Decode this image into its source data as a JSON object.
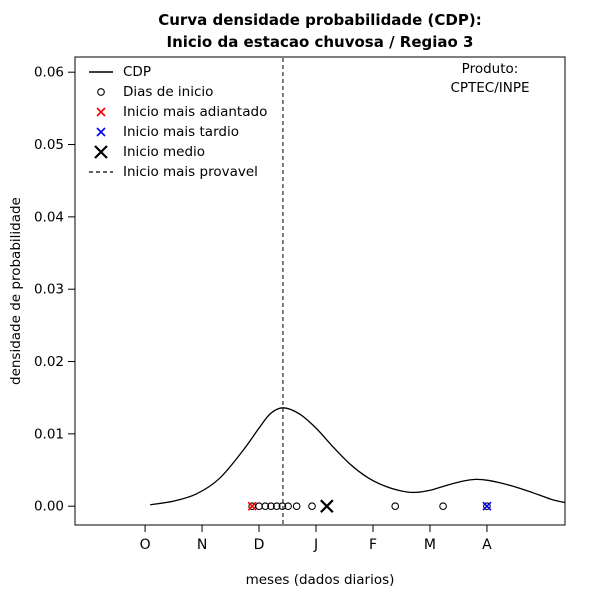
{
  "colors": {
    "foreground": "#000000",
    "background": "#ffffff",
    "earliest": "#ff0000",
    "latest": "#0000ff",
    "mean": "#000000"
  },
  "legend": {
    "items": [
      {
        "label": "CDP"
      },
      {
        "label": "Dias de inicio"
      },
      {
        "label": "Inicio mais adiantado"
      },
      {
        "label": "Inicio mais tardio"
      },
      {
        "label": "Inicio medio"
      },
      {
        "label": "Inicio mais provavel"
      }
    ]
  },
  "chart_data": {
    "type": "line",
    "title_line1": "Curva densidade probabilidade (CDP):",
    "title_line2": "Inicio da estacao chuvosa / Regiao 3",
    "xlabel": "meses (dados diarios)",
    "ylabel": "densidade de probabilidade",
    "annotation_line1": "Produto:",
    "annotation_line2": "CPTEC/INPE",
    "grid": false,
    "legend_position": "top-left",
    "x_domain": [
      -1.23,
      7.37
    ],
    "y_domain": [
      -0.0026,
      0.0621
    ],
    "x_ticks": [
      {
        "label": "O",
        "x": 0
      },
      {
        "label": "N",
        "x": 1
      },
      {
        "label": "D",
        "x": 2
      },
      {
        "label": "J",
        "x": 3
      },
      {
        "label": "F",
        "x": 4
      },
      {
        "label": "M",
        "x": 5
      },
      {
        "label": "A",
        "x": 6
      }
    ],
    "y_ticks": [
      {
        "label": "0.00",
        "v": 0.0
      },
      {
        "label": "0.01",
        "v": 0.01
      },
      {
        "label": "0.02",
        "v": 0.02
      },
      {
        "label": "0.03",
        "v": 0.03
      },
      {
        "label": "0.04",
        "v": 0.04
      },
      {
        "label": "0.05",
        "v": 0.05
      },
      {
        "label": "0.06",
        "v": 0.06
      }
    ],
    "cdp_curve": [
      [
        0.09,
        0.0002
      ],
      [
        0.5,
        0.0007
      ],
      [
        0.9,
        0.0017
      ],
      [
        1.3,
        0.0038
      ],
      [
        1.7,
        0.0075
      ],
      [
        2.0,
        0.0108
      ],
      [
        2.2,
        0.0128
      ],
      [
        2.42,
        0.0136
      ],
      [
        2.7,
        0.0128
      ],
      [
        3.0,
        0.0108
      ],
      [
        3.3,
        0.0082
      ],
      [
        3.6,
        0.0058
      ],
      [
        3.9,
        0.004
      ],
      [
        4.2,
        0.0028
      ],
      [
        4.5,
        0.0021
      ],
      [
        4.75,
        0.0019
      ],
      [
        5.0,
        0.0022
      ],
      [
        5.3,
        0.0029
      ],
      [
        5.6,
        0.0035
      ],
      [
        5.8,
        0.0037
      ],
      [
        6.0,
        0.0036
      ],
      [
        6.3,
        0.0031
      ],
      [
        6.6,
        0.0024
      ],
      [
        6.9,
        0.0016
      ],
      [
        7.15,
        0.0009
      ],
      [
        7.37,
        0.0005
      ]
    ],
    "onset_days_y": 0,
    "onset_days_x": [
      1.88,
      2.0,
      2.11,
      2.21,
      2.31,
      2.41,
      2.51,
      2.66,
      2.93,
      4.39,
      5.23,
      6.0
    ],
    "earliest_onset": {
      "x": 1.88,
      "y": 0
    },
    "latest_onset": {
      "x": 6.0,
      "y": 0
    },
    "mean_onset": {
      "x": 3.19,
      "y": 0
    },
    "most_probable_onset_x": 2.42
  }
}
